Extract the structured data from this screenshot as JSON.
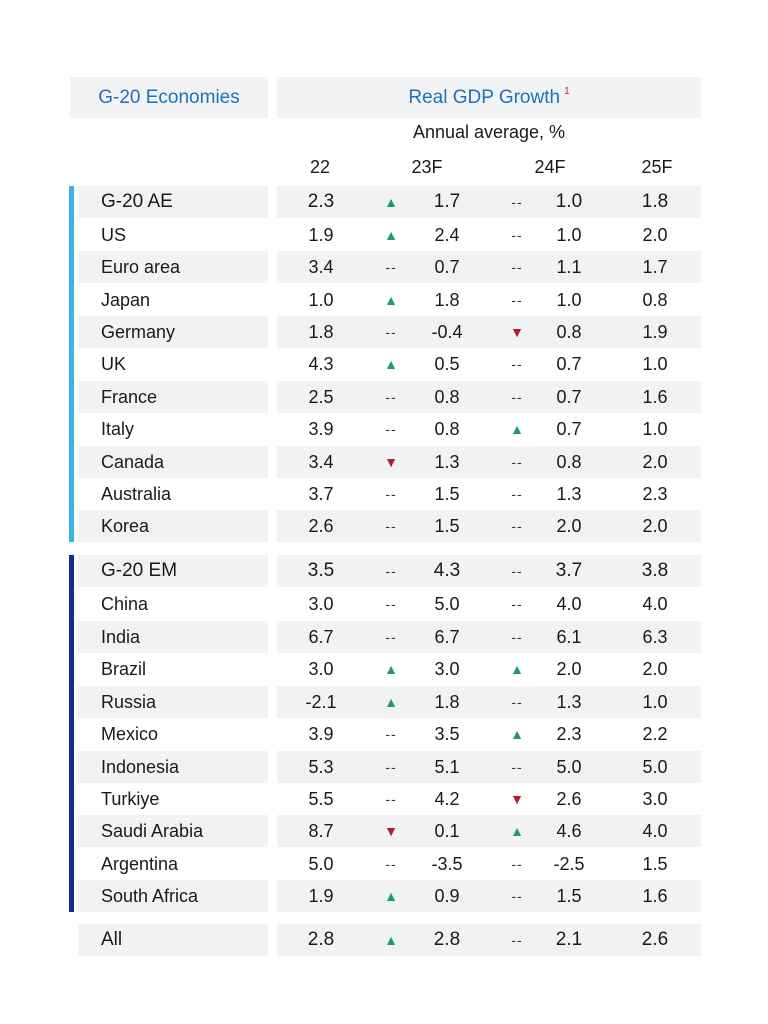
{
  "header": {
    "left_title": "G-20 Economies",
    "right_title": "Real GDP Growth",
    "footnote_mark": "1",
    "subtitle": "Annual average, %"
  },
  "columns": [
    "22",
    "23F",
    "24F",
    "25F"
  ],
  "indicator_symbols": {
    "up": "▲",
    "down": "▼",
    "flat": "--"
  },
  "colors": {
    "accent_blue": "#1f6fbf",
    "ae_bar": "#39b4e6",
    "em_bar": "#0e2d8f",
    "up": "#1e9a6b",
    "down": "#b5182f",
    "shade": "#f1f2f4"
  },
  "rows": [
    {
      "name": "G-20 AE",
      "v22": "2.3",
      "t23": "up",
      "v23": "1.7",
      "t24": "flat",
      "v24": "1.0",
      "v25": "1.8"
    },
    {
      "name": "US",
      "v22": "1.9",
      "t23": "up",
      "v23": "2.4",
      "t24": "flat",
      "v24": "1.0",
      "v25": "2.0"
    },
    {
      "name": "Euro area",
      "v22": "3.4",
      "t23": "flat",
      "v23": "0.7",
      "t24": "flat",
      "v24": "1.1",
      "v25": "1.7"
    },
    {
      "name": "Japan",
      "v22": "1.0",
      "t23": "up",
      "v23": "1.8",
      "t24": "flat",
      "v24": "1.0",
      "v25": "0.8"
    },
    {
      "name": "Germany",
      "v22": "1.8",
      "t23": "flat",
      "v23": "-0.4",
      "t24": "down",
      "v24": "0.8",
      "v25": "1.9"
    },
    {
      "name": "UK",
      "v22": "4.3",
      "t23": "up",
      "v23": "0.5",
      "t24": "flat",
      "v24": "0.7",
      "v25": "1.0"
    },
    {
      "name": "France",
      "v22": "2.5",
      "t23": "flat",
      "v23": "0.8",
      "t24": "flat",
      "v24": "0.7",
      "v25": "1.6"
    },
    {
      "name": "Italy",
      "v22": "3.9",
      "t23": "flat",
      "v23": "0.8",
      "t24": "up",
      "v24": "0.7",
      "v25": "1.0"
    },
    {
      "name": "Canada",
      "v22": "3.4",
      "t23": "down",
      "v23": "1.3",
      "t24": "flat",
      "v24": "0.8",
      "v25": "2.0"
    },
    {
      "name": "Australia",
      "v22": "3.7",
      "t23": "flat",
      "v23": "1.5",
      "t24": "flat",
      "v24": "1.3",
      "v25": "2.3"
    },
    {
      "name": "Korea",
      "v22": "2.6",
      "t23": "flat",
      "v23": "1.5",
      "t24": "flat",
      "v24": "2.0",
      "v25": "2.0"
    },
    {
      "name": "G-20 EM",
      "v22": "3.5",
      "t23": "flat",
      "v23": "4.3",
      "t24": "flat",
      "v24": "3.7",
      "v25": "3.8"
    },
    {
      "name": "China",
      "v22": "3.0",
      "t23": "flat",
      "v23": "5.0",
      "t24": "flat",
      "v24": "4.0",
      "v25": "4.0"
    },
    {
      "name": "India",
      "v22": "6.7",
      "t23": "flat",
      "v23": "6.7",
      "t24": "flat",
      "v24": "6.1",
      "v25": "6.3"
    },
    {
      "name": "Brazil",
      "v22": "3.0",
      "t23": "up",
      "v23": "3.0",
      "t24": "up",
      "v24": "2.0",
      "v25": "2.0"
    },
    {
      "name": "Russia",
      "v22": "-2.1",
      "t23": "up",
      "v23": "1.8",
      "t24": "flat",
      "v24": "1.3",
      "v25": "1.0"
    },
    {
      "name": "Mexico",
      "v22": "3.9",
      "t23": "flat",
      "v23": "3.5",
      "t24": "up",
      "v24": "2.3",
      "v25": "2.2"
    },
    {
      "name": "Indonesia",
      "v22": "5.3",
      "t23": "flat",
      "v23": "5.1",
      "t24": "flat",
      "v24": "5.0",
      "v25": "5.0"
    },
    {
      "name": "Turkiye",
      "v22": "5.5",
      "t23": "flat",
      "v23": "4.2",
      "t24": "down",
      "v24": "2.6",
      "v25": "3.0"
    },
    {
      "name": "Saudi Arabia",
      "v22": "8.7",
      "t23": "down",
      "v23": "0.1",
      "t24": "up",
      "v24": "4.6",
      "v25": "4.0"
    },
    {
      "name": "Argentina",
      "v22": "5.0",
      "t23": "flat",
      "v23": "-3.5",
      "t24": "flat",
      "v24": "-2.5",
      "v25": "1.5"
    },
    {
      "name": "South Africa",
      "v22": "1.9",
      "t23": "up",
      "v23": "0.9",
      "t24": "flat",
      "v24": "1.5",
      "v25": "1.6"
    },
    {
      "name": "All",
      "v22": "2.8",
      "t23": "up",
      "v23": "2.8",
      "t24": "flat",
      "v24": "2.1",
      "v25": "2.6"
    }
  ]
}
